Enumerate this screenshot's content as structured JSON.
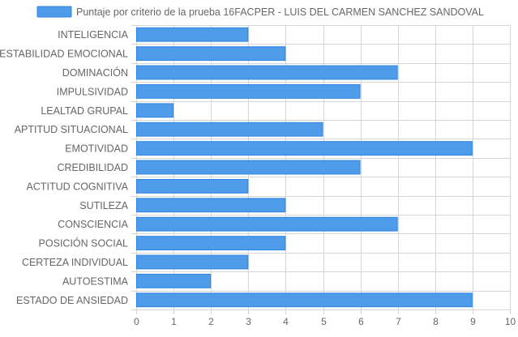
{
  "colors": {
    "bar_fill": "#4e9bea",
    "bar_stroke": "#2f86e0",
    "grid": "#d6d6d6",
    "tick_text": "#666666"
  },
  "chart_data": {
    "type": "bar",
    "orientation": "horizontal",
    "title": "",
    "xlabel": "",
    "ylabel": "",
    "legend_position": "top",
    "grid": true,
    "xlim": [
      0,
      10
    ],
    "x_ticks": [
      "0",
      "1",
      "2",
      "3",
      "4",
      "5",
      "6",
      "7",
      "8",
      "9",
      "10"
    ],
    "categories": [
      "INTELIGENCIA",
      "ESTABILIDAD EMOCIONAL",
      "DOMINACIÓN",
      "IMPULSIVIDAD",
      "LEALTAD GRUPAL",
      "APTITUD SITUACIONAL",
      "EMOTIVIDAD",
      "CREDIBILIDAD",
      "ACTITUD COGNITIVA",
      "SUTILEZA",
      "CONSCIENCIA",
      "POSICIÓN SOCIAL",
      "CERTEZA INDIVIDUAL",
      "AUTOESTIMA",
      "ESTADO DE ANSIEDAD"
    ],
    "series": [
      {
        "name": "Puntaje por criterio de la prueba 16FACPER - LUIS DEL CARMEN SANCHEZ SANDOVAL",
        "values": [
          3,
          4,
          7,
          6,
          1,
          5,
          9,
          6,
          3,
          4,
          7,
          4,
          3,
          2,
          9
        ]
      }
    ]
  }
}
